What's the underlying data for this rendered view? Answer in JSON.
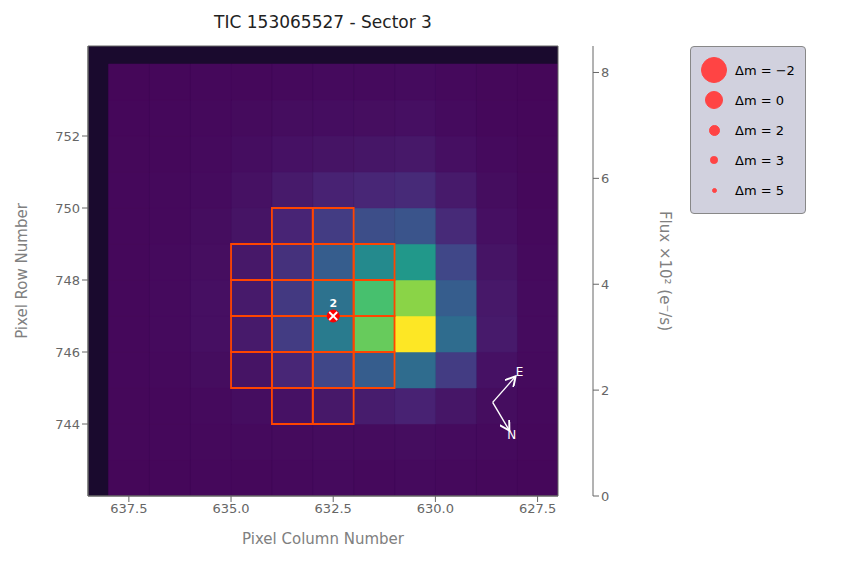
{
  "chart_data": {
    "type": "heatmap",
    "title": "TIC 153065527 - Sector 3",
    "xlabel": "Pixel Column Number",
    "ylabel": "Pixel Row Number",
    "x": [
      627.0,
      628.0,
      629.0,
      630.0,
      631.0,
      632.0,
      633.0,
      634.0,
      635.0,
      636.0,
      637.0,
      638.0
    ],
    "y": [
      742.0,
      743.0,
      744.0,
      745.0,
      746.0,
      747.0,
      748.0,
      749.0,
      750.0,
      751.0,
      752.0,
      753.0,
      754.0
    ],
    "values": [
      [
        0.15,
        0.18,
        0.2,
        0.22,
        0.2,
        0.22,
        0.2,
        0.18,
        0.18,
        0.15,
        0.14
      ],
      [
        0.18,
        0.22,
        0.25,
        0.28,
        0.26,
        0.26,
        0.24,
        0.22,
        0.2,
        0.18,
        0.16
      ],
      [
        0.2,
        0.28,
        0.5,
        0.8,
        0.65,
        0.55,
        0.4,
        0.3,
        0.22,
        0.18,
        0.16
      ],
      [
        0.22,
        0.4,
        1.5,
        3.0,
        2.5,
        1.8,
        0.9,
        0.45,
        0.28,
        0.2,
        0.18
      ],
      [
        0.25,
        0.6,
        3.0,
        8.5,
        6.5,
        3.5,
        1.5,
        0.6,
        0.35,
        0.22,
        0.18
      ],
      [
        0.25,
        0.55,
        2.5,
        7.0,
        6.0,
        3.2,
        1.4,
        0.6,
        0.35,
        0.22,
        0.18
      ],
      [
        0.22,
        0.45,
        1.8,
        4.5,
        4.0,
        2.5,
        1.2,
        0.55,
        0.32,
        0.22,
        0.18
      ],
      [
        0.2,
        0.35,
        1.0,
        2.2,
        2.0,
        1.5,
        0.85,
        0.45,
        0.28,
        0.2,
        0.18
      ],
      [
        0.18,
        0.28,
        0.6,
        1.0,
        0.9,
        0.8,
        0.6,
        0.38,
        0.25,
        0.2,
        0.17
      ],
      [
        0.16,
        0.22,
        0.35,
        0.55,
        0.5,
        0.45,
        0.4,
        0.3,
        0.22,
        0.18,
        0.16
      ],
      [
        0.15,
        0.18,
        0.25,
        0.35,
        0.32,
        0.3,
        0.28,
        0.24,
        0.2,
        0.17,
        0.15
      ],
      [
        0.14,
        0.16,
        0.2,
        0.25,
        0.22,
        0.22,
        0.2,
        0.18,
        0.17,
        0.15,
        0.14
      ]
    ],
    "colorbar_label": "Flux ×10² (e⁻/s)",
    "colorbar_lim": [
      0.0,
      8.5
    ],
    "colorbar_ticks": [
      0,
      2,
      4,
      6,
      8
    ],
    "xlim": [
      638.5,
      627.0
    ],
    "xticks": [
      637.5,
      {
        "value": 635.0,
        "label": "635.0"
      },
      632.5,
      {
        "value": 630.0,
        "label": "630.0"
      },
      627.5
    ],
    "ylim": [
      742.0,
      754.5
    ],
    "yticks": [
      744,
      746,
      748,
      750,
      752
    ],
    "aperture_color": "#FF4500",
    "aperture_cells": [
      [
        631,
        632,
        745,
        746
      ],
      [
        631,
        632,
        746,
        747
      ],
      [
        631,
        632,
        747,
        748
      ],
      [
        631,
        632,
        748,
        749
      ],
      [
        632,
        633,
        745,
        746
      ],
      [
        632,
        633,
        746,
        747
      ],
      [
        632,
        633,
        747,
        748
      ],
      [
        632,
        633,
        748,
        749
      ],
      [
        633,
        634,
        745,
        746
      ],
      [
        633,
        634,
        746,
        747
      ],
      [
        633,
        634,
        747,
        748
      ],
      [
        633,
        634,
        748,
        749
      ],
      [
        634,
        635,
        745,
        746
      ],
      [
        634,
        635,
        746,
        747
      ],
      [
        634,
        635,
        747,
        748
      ],
      [
        634,
        635,
        748,
        749
      ],
      [
        632,
        633,
        749,
        750
      ],
      [
        633,
        634,
        749,
        750
      ],
      [
        632,
        633,
        744,
        745
      ],
      [
        633,
        634,
        744,
        745
      ]
    ],
    "target": {
      "x": 632.5,
      "y": 747.0,
      "label": "2",
      "color": "red"
    },
    "annotations": [
      "E",
      "N"
    ],
    "legend": "upper right",
    "series": [
      {
        "name": "Δm = −2",
        "color": "#FF4444",
        "marker": "circle"
      },
      {
        "name": "Δm = 0",
        "color": "#FF4444",
        "marker": "circle"
      },
      {
        "name": "Δm = 2",
        "color": "#FF4444",
        "marker": "circle"
      },
      {
        "name": "Δm = 3",
        "color": "#FF4444",
        "marker": "circle"
      },
      {
        "name": "Δm = 5",
        "color": "#FF4444",
        "marker": "circle"
      }
    ]
  }
}
